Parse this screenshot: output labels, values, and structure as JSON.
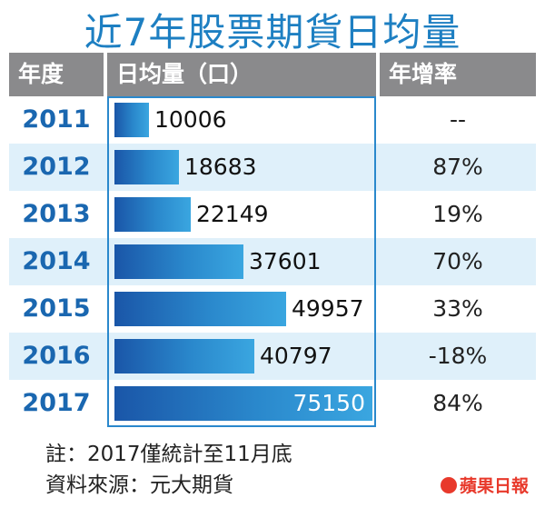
{
  "title": "近7年股票期貨日均量",
  "headers": {
    "year": "年度",
    "volume": "日均量（口）",
    "growth": "年增率"
  },
  "chart_data": {
    "type": "bar",
    "orientation": "horizontal",
    "categories": [
      "2011",
      "2012",
      "2013",
      "2014",
      "2015",
      "2016",
      "2017"
    ],
    "values": [
      10006,
      18683,
      22149,
      37601,
      49957,
      40797,
      75150
    ],
    "growth_rates": [
      "--",
      "87%",
      "19%",
      "70%",
      "33%",
      "-18%",
      "84%"
    ],
    "title": "近7年股票期貨日均量",
    "ylabel": "日均量（口）",
    "xlim": [
      0,
      75150
    ]
  },
  "footnotes": {
    "note": "註：2017僅統計至11月底",
    "source": "資料來源：元大期貨"
  },
  "brand": "蘋果日報",
  "colors": {
    "title": "#1d7fc2",
    "year_text": "#1a67b0",
    "header_bg": "#8a8a8c",
    "alt_row": "#dff0fa",
    "bar": "#2a88cc"
  }
}
